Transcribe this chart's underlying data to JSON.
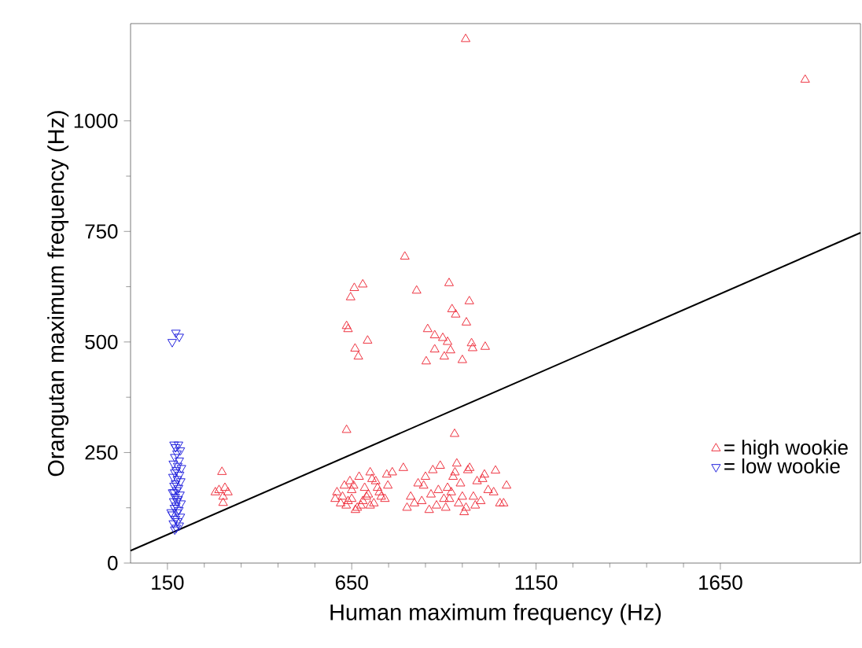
{
  "chart_data": {
    "type": "scatter",
    "xlabel": "Human maximum frequency (Hz)",
    "ylabel": "Orangutan maximum frequency (Hz)",
    "xlim": [
      50,
      2030
    ],
    "ylim": [
      0,
      1220
    ],
    "xticks": [
      150,
      650,
      1150,
      1650
    ],
    "yticks": [
      0,
      250,
      500,
      750,
      1000
    ],
    "legend": "bottom right",
    "series": [
      {
        "name": "= high wookie",
        "color": "#ee3340",
        "marker": "triangle",
        "x": [
          794,
          657,
          680,
          647,
          826,
          914,
          922,
          932,
          969,
          961,
          636,
          640,
          856,
          875,
          897,
          910,
          975,
          1012,
          978,
          875,
          918,
          659,
          693,
          668,
          901,
          950,
          852,
          959,
          1880,
          636,
          929,
          298,
          290,
          306,
          301,
          280,
          314,
          301,
          610,
          625,
          640,
          655,
          670,
          685,
          700,
          715,
          730,
          745,
          760,
          620,
          635,
          650,
          665,
          680,
          695,
          710,
          725,
          740,
          630,
          645,
          660,
          675,
          690,
          705,
          720,
          605,
          650,
          700,
          748,
          790,
          810,
          830,
          850,
          870,
          890,
          910,
          930,
          950,
          970,
          990,
          1010,
          800,
          820,
          840,
          860,
          880,
          900,
          920,
          940,
          960,
          980,
          1000,
          1020,
          845,
          865,
          885,
          905,
          925,
          945,
          965,
          985,
          1005,
          915,
          935,
          955,
          1035,
          1052,
          1062,
          1040,
          1070
        ],
        "values": [
          693,
          622,
          630,
          601,
          616,
          633,
          574,
          562,
          592,
          544,
          536,
          529,
          529,
          515,
          509,
          500,
          497,
          489,
          486,
          483,
          481,
          485,
          503,
          467,
          467,
          459,
          456,
          1185,
          1093,
          301,
          292,
          206,
          165,
          170,
          150,
          160,
          160,
          136,
          160,
          150,
          140,
          175,
          195,
          170,
          205,
          185,
          150,
          200,
          205,
          135,
          130,
          145,
          125,
          140,
          155,
          135,
          160,
          145,
          175,
          185,
          120,
          130,
          150,
          190,
          170,
          145,
          165,
          130,
          175,
          215,
          150,
          180,
          195,
          210,
          220,
          170,
          205,
          150,
          215,
          185,
          200,
          125,
          135,
          140,
          120,
          130,
          145,
          160,
          135,
          125,
          150,
          140,
          165,
          175,
          155,
          165,
          125,
          195,
          180,
          210,
          130,
          190,
          145,
          225,
          115,
          160,
          135,
          135,
          209,
          175
        ]
      },
      {
        "name": "= low wookie",
        "color": "#2323dd",
        "marker": "triangle_down",
        "x": [
          163,
          173,
          182,
          168,
          180,
          172,
          185,
          176,
          170,
          182,
          166,
          178,
          188,
          174,
          170,
          183,
          165,
          177,
          186,
          172,
          168,
          180,
          175,
          164,
          184,
          171,
          179,
          167,
          187,
          173,
          169,
          181,
          176,
          163,
          185,
          172,
          178,
          166,
          182,
          174,
          170,
          160,
          176,
          168
        ],
        "values": [
          500,
          521,
          512,
          268,
          268,
          262,
          255,
          248,
          240,
          232,
          225,
          220,
          215,
          210,
          205,
          200,
          195,
          190,
          185,
          180,
          175,
          170,
          165,
          160,
          155,
          150,
          145,
          140,
          135,
          130,
          125,
          120,
          115,
          110,
          105,
          100,
          95,
          90,
          85,
          80,
          76,
          115,
          140,
          160
        ]
      },
      {
        "type": "line",
        "color": "#000000",
        "marker": "none",
        "x": [
          50,
          2030
        ],
        "values": [
          28,
          747
        ]
      }
    ]
  }
}
